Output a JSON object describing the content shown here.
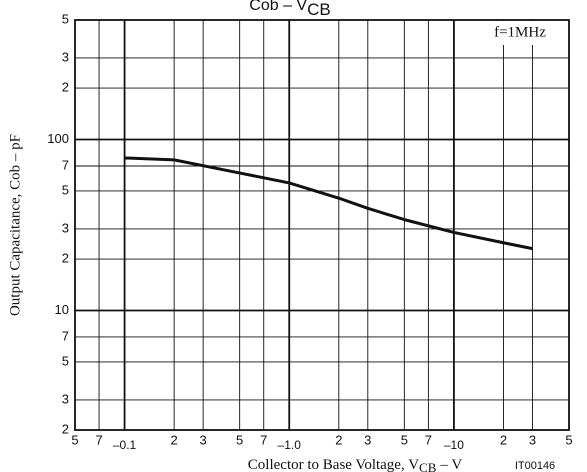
{
  "chart_data": {
    "type": "line",
    "title": "Cob  –  V",
    "title_subscript": "CB",
    "x_label": "Collector to Base Voltage, V",
    "x_label_subscript": "CB",
    "x_label_unit": "–  V",
    "y_label": "Output Capacitance, Cob  –  pF",
    "annotation": "f=1MHz",
    "figure_code": "IT00146",
    "x_scale": "log",
    "y_scale": "log",
    "grid": true,
    "xlim": [
      -0.05,
      -50
    ],
    "ylim": [
      2,
      500
    ],
    "xticks": [
      {
        "value": -0.05,
        "label": "5"
      },
      {
        "value": -0.07,
        "label": "7"
      },
      {
        "value": -0.1,
        "label": "–0.1"
      },
      {
        "value": -0.2,
        "label": "2"
      },
      {
        "value": -0.3,
        "label": "3"
      },
      {
        "value": -0.5,
        "label": "5"
      },
      {
        "value": -0.7,
        "label": "7"
      },
      {
        "value": -1.0,
        "label": "–1.0"
      },
      {
        "value": -2,
        "label": "2"
      },
      {
        "value": -3,
        "label": "3"
      },
      {
        "value": -5,
        "label": "5"
      },
      {
        "value": -7,
        "label": "7"
      },
      {
        "value": -10,
        "label": "–10"
      },
      {
        "value": -20,
        "label": "2"
      },
      {
        "value": -30,
        "label": "3"
      },
      {
        "value": -50,
        "label": "5"
      }
    ],
    "yticks": [
      2,
      3,
      5,
      7,
      10,
      {
        "value": 20,
        "label": "2"
      },
      {
        "value": 30,
        "label": "3"
      },
      {
        "value": 50,
        "label": "5"
      },
      {
        "value": 70,
        "label": "7"
      },
      100,
      {
        "value": 200,
        "label": "2"
      },
      {
        "value": 300,
        "label": "3"
      },
      {
        "value": 500,
        "label": "5"
      }
    ],
    "series": [
      {
        "name": "Cob",
        "color": "#111111",
        "x": [
          -0.1,
          -0.2,
          -0.4,
          -1.0,
          -2,
          -3,
          -5,
          -10,
          -20,
          -30
        ],
        "values": [
          78,
          76,
          66.5,
          55.7,
          45.4,
          39.6,
          34,
          28.6,
          24.9,
          23
        ]
      }
    ]
  }
}
